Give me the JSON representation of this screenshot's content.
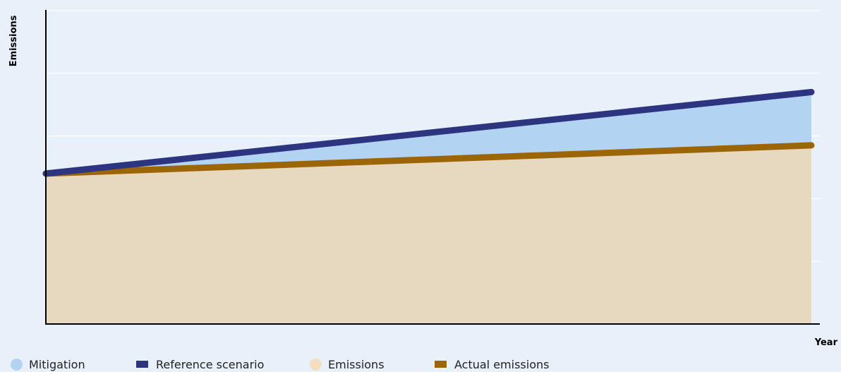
{
  "chart_data": {
    "type": "area",
    "title": "",
    "xlabel": "Year",
    "ylabel": "Emissions",
    "xlim": [
      0,
      100
    ],
    "ylim": [
      0,
      100
    ],
    "grid": true,
    "legend_position": "bottom",
    "x": [
      0,
      100
    ],
    "series": [
      {
        "name": "Mitigation",
        "kind": "area-band",
        "lower": [
          48,
          57
        ],
        "upper": [
          48,
          74
        ],
        "color": "#b2d3f1"
      },
      {
        "name": "Reference scenario",
        "kind": "line",
        "values": [
          48,
          74
        ],
        "color": "#2d3580"
      },
      {
        "name": "Emissions",
        "kind": "area",
        "values": [
          48,
          57
        ],
        "color": "#e7d9bf"
      },
      {
        "name": "Actual emissions",
        "kind": "line",
        "values": [
          48,
          57
        ],
        "color": "#9c6508"
      }
    ]
  },
  "legend": [
    {
      "label": "Mitigation",
      "shape": "circle",
      "color": "#b2d3f1"
    },
    {
      "label": "Reference scenario",
      "shape": "rect",
      "color": "#2d3580"
    },
    {
      "label": "Emissions",
      "shape": "circle",
      "color": "#f3dec0"
    },
    {
      "label": "Actual emissions",
      "shape": "rect",
      "color": "#9c6508"
    }
  ]
}
